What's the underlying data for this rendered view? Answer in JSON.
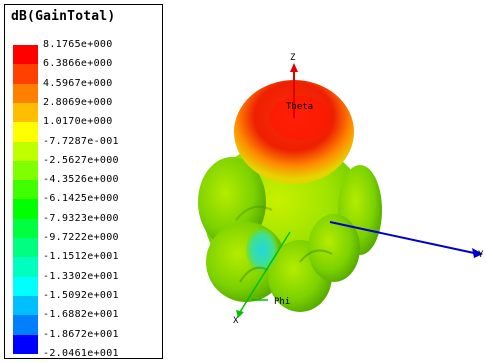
{
  "legend": {
    "title": "dB(GainTotal)",
    "levels": [
      "8.1765e+000",
      "6.3866e+000",
      "4.5967e+000",
      "2.8069e+000",
      "1.0170e+000",
      "-7.7287e-001",
      "-2.5627e+000",
      "-4.3526e+000",
      "-6.1425e+000",
      "-7.9323e+000",
      "-9.7222e+000",
      "-1.1512e+001",
      "-1.3302e+001",
      "-1.5092e+001",
      "-1.6882e+001",
      "-1.8672e+001",
      "-2.0461e+001"
    ],
    "colors": [
      "#ff0000",
      "#ff4000",
      "#ff8000",
      "#ffbf00",
      "#ffff00",
      "#bfff00",
      "#80ff00",
      "#40ff00",
      "#00ff00",
      "#00ff40",
      "#00ff80",
      "#00ffbf",
      "#00ffff",
      "#00bfff",
      "#0080ff",
      "#0000ff"
    ]
  },
  "axes": {
    "z_label": "Z",
    "theta_label": "Theta",
    "y_label": "Y",
    "phi_label": "Phi",
    "x_label": "X"
  },
  "theme": {
    "axis_red": "#e00000",
    "axis_blue": "#0000cc",
    "axis_green": "#00c000"
  }
}
